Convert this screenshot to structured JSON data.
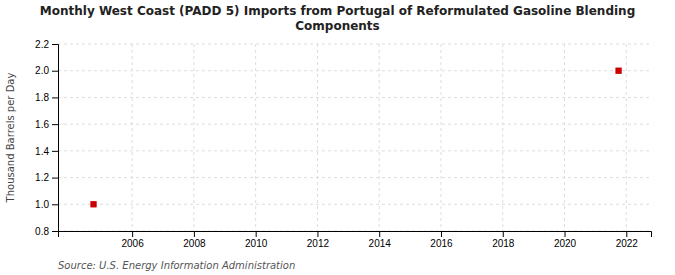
{
  "chart_data": {
    "type": "scatter",
    "title": "Monthly West Coast (PADD 5) Imports from Portugal of Reformulated Gasoline Blending\nComponents",
    "y_label": "Thousand Barrels per Day",
    "source": "Source: U.S. Energy Information Administration",
    "x": [
      2004.75,
      2021.75
    ],
    "values": [
      1.0,
      2.0
    ],
    "color": "#cc0000",
    "marker": "square",
    "xlim": [
      2003.6,
      2022.8
    ],
    "ylim": [
      0.8,
      2.2
    ],
    "xticks": [
      2006,
      2008,
      2010,
      2012,
      2014,
      2016,
      2018,
      2020,
      2022
    ],
    "yticks": [
      0.8,
      {
        "value": 1.0,
        "label": "1.0"
      },
      1.2,
      1.4,
      1.6,
      1.8,
      {
        "value": 2.0,
        "label": "2.0"
      },
      2.2
    ],
    "grid": true
  }
}
